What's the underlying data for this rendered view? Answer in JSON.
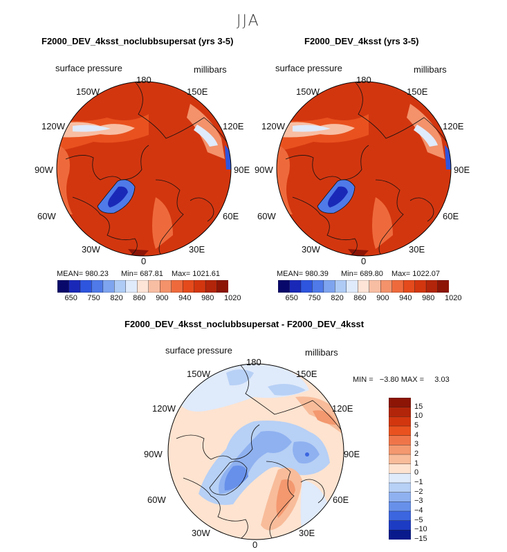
{
  "season": "JJA",
  "panels": [
    {
      "title": "F2000_DEV_4ksst_noclubbsupersat (yrs 3-5)",
      "variable": "surface pressure",
      "units": "millibars",
      "mean_label": "MEAN= 980.23",
      "min_label": "Min= 687.81",
      "max_label": "Max= 1021.61"
    },
    {
      "title": "F2000_DEV_4ksst (yrs 3-5)",
      "variable": "surface pressure",
      "units": "millibars",
      "mean_label": "MEAN= 980.39",
      "min_label": "Min= 689.80",
      "max_label": "Max= 1022.07"
    }
  ],
  "lon_labels": {
    "top": "180",
    "left_upper": "150W",
    "left_mid_upper": "120W",
    "left_mid": "90W",
    "left_lower": "60W",
    "left_bottom": "30W",
    "bottom": "0",
    "right_upper": "150E",
    "right_mid_upper": "120E",
    "right_mid": "90E",
    "right_lower": "60E",
    "right_bottom": "30E"
  },
  "colorbar_top": {
    "labels": [
      "650",
      "750",
      "820",
      "860",
      "900",
      "940",
      "980",
      "1020"
    ],
    "colors": [
      "#08086b",
      "#1a28b8",
      "#2e55de",
      "#4f7ae8",
      "#7ea4ef",
      "#aecbf5",
      "#dfeafb",
      "#fde4d6",
      "#f8bea3",
      "#f3926b",
      "#ee6a3c",
      "#e44a1c",
      "#d2360f",
      "#b2250a",
      "#8c1506"
    ]
  },
  "diff": {
    "title": "F2000_DEV_4ksst_noclubbsupersat - F2000_DEV_4ksst",
    "variable": "surface pressure",
    "units": "millibars",
    "minmax_label": "MIN =   −3.80 MAX =     3.03",
    "levels": [
      "15",
      "10",
      "5",
      "4",
      "3",
      "2",
      "1",
      "0",
      "−1",
      "−2",
      "−3",
      "−4",
      "−5",
      "−10",
      "−15"
    ],
    "colors": [
      "#8c1506",
      "#b2250a",
      "#d2360f",
      "#e9521f",
      "#ef7549",
      "#f3986f",
      "#f8bc9a",
      "#fde3d0",
      "#dfeafb",
      "#b7d0f5",
      "#8fb1f0",
      "#6790ea",
      "#3c66e0",
      "#1d3cc4",
      "#081a8c"
    ]
  },
  "chart_data": [
    {
      "type": "heatmap",
      "title": "F2000_DEV_4ksst_noclubbsupersat (yrs 3-5)",
      "xlabel": "surface pressure",
      "ylabel": "millibars",
      "projection": "north polar stereographic",
      "mean": 980.23,
      "min": 687.81,
      "max": 1021.61,
      "levels": [
        650,
        750,
        820,
        860,
        900,
        940,
        980,
        1020
      ],
      "legend": "bottom colorbar"
    },
    {
      "type": "heatmap",
      "title": "F2000_DEV_4ksst (yrs 3-5)",
      "xlabel": "surface pressure",
      "ylabel": "millibars",
      "projection": "north polar stereographic",
      "mean": 980.39,
      "min": 689.8,
      "max": 1022.07,
      "levels": [
        650,
        750,
        820,
        860,
        900,
        940,
        980,
        1020
      ],
      "legend": "bottom colorbar"
    },
    {
      "type": "heatmap",
      "title": "F2000_DEV_4ksst_noclubbsupersat - F2000_DEV_4ksst",
      "xlabel": "surface pressure",
      "ylabel": "millibars",
      "projection": "north polar stereographic",
      "min": -3.8,
      "max": 3.03,
      "levels": [
        -15,
        -10,
        -5,
        -4,
        -3,
        -2,
        -1,
        0,
        1,
        2,
        3,
        4,
        5,
        10,
        15
      ],
      "legend": "right colorbar"
    }
  ]
}
